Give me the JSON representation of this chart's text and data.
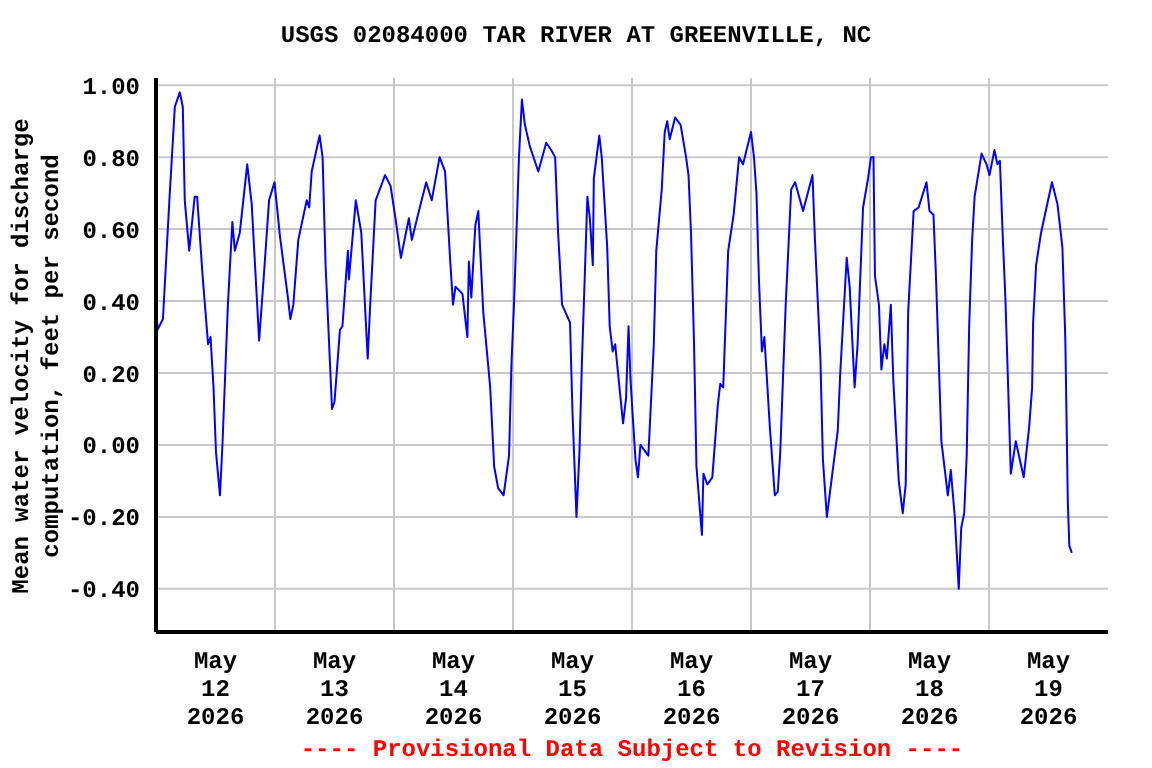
{
  "chart_data": {
    "type": "line",
    "title": "USGS 02084000 TAR RIVER AT GREENVILLE, NC",
    "ylabel": "Mean water velocity for discharge computation, feet per second",
    "annotations": [
      "---- Provisional Data Subject to Revision ----"
    ],
    "xlim": [
      "2026-05-12T00:00",
      "2026-05-20T00:00"
    ],
    "xticks": [
      {
        "value": "2026-05-12T12:00",
        "label": "May 12 2026"
      },
      {
        "value": "2026-05-13T00:00",
        "label": null
      },
      {
        "value": "2026-05-13T12:00",
        "label": "May 13 2026"
      },
      {
        "value": "2026-05-14T00:00",
        "label": null
      },
      {
        "value": "2026-05-14T12:00",
        "label": "May 14 2026"
      },
      {
        "value": "2026-05-15T00:00",
        "label": null
      },
      {
        "value": "2026-05-15T12:00",
        "label": "May 15 2026"
      },
      {
        "value": "2026-05-16T00:00",
        "label": null
      },
      {
        "value": "2026-05-16T12:00",
        "label": "May 16 2026"
      },
      {
        "value": "2026-05-17T00:00",
        "label": null
      },
      {
        "value": "2026-05-17T12:00",
        "label": "May 17 2026"
      },
      {
        "value": "2026-05-18T00:00",
        "label": null
      },
      {
        "value": "2026-05-18T12:00",
        "label": "May 18 2026"
      },
      {
        "value": "2026-05-19T00:00",
        "label": null
      },
      {
        "value": "2026-05-19T12:00",
        "label": "May 19 2026"
      }
    ],
    "ylim": [
      -0.52,
      1.02
    ],
    "yticks": [
      {
        "value": -0.4,
        "label": "-0.40"
      },
      {
        "value": -0.2,
        "label": "-0.20"
      },
      {
        "value": 0,
        "label": "0.00"
      },
      {
        "value": 0.2,
        "label": "0.20"
      },
      {
        "value": 0.4,
        "label": "0.40"
      },
      {
        "value": 0.6,
        "label": "0.60"
      },
      {
        "value": 0.8,
        "label": "0.80"
      },
      {
        "value": 1,
        "label": "1.00"
      }
    ],
    "grid": true,
    "series": [
      {
        "color": "#0000ff",
        "x": [
          "2026-05-12T00:00",
          "2026-05-12T00:18",
          "2026-05-12T01:24",
          "2026-05-12T02:42",
          "2026-05-12T03:48",
          "2026-05-12T04:48",
          "2026-05-12T05:24",
          "2026-05-12T05:48",
          "2026-05-12T06:42",
          "2026-05-12T07:48",
          "2026-05-12T08:18",
          "2026-05-12T09:24",
          "2026-05-12T10:30",
          "2026-05-12T11:00",
          "2026-05-12T11:36",
          "2026-05-12T12:06",
          "2026-05-12T12:54",
          "2026-05-12T13:24",
          "2026-05-12T14:30",
          "2026-05-12T15:24",
          "2026-05-12T15:54",
          "2026-05-12T16:54",
          "2026-05-12T18:24",
          "2026-05-12T19:18",
          "2026-05-12T20:48",
          "2026-05-12T21:48",
          "2026-05-12T22:48",
          "2026-05-12T23:54",
          "2026-05-13T01:00",
          "2026-05-13T02:36",
          "2026-05-13T03:06",
          "2026-05-13T03:42",
          "2026-05-13T04:42",
          "2026-05-13T06:24",
          "2026-05-13T06:54",
          "2026-05-13T07:24",
          "2026-05-13T09:00",
          "2026-05-13T09:36",
          "2026-05-13T10:12",
          "2026-05-13T11:30",
          "2026-05-13T12:00",
          "2026-05-13T13:06",
          "2026-05-13T13:36",
          "2026-05-13T14:42",
          "2026-05-13T14:54",
          "2026-05-13T16:18",
          "2026-05-13T17:24",
          "2026-05-13T18:42",
          "2026-05-13T19:12",
          "2026-05-13T20:18",
          "2026-05-13T22:12",
          "2026-05-13T23:18",
          "2026-05-14T00:18",
          "2026-05-14T01:24",
          "2026-05-14T03:00",
          "2026-05-14T03:36",
          "2026-05-14T05:12",
          "2026-05-14T06:30",
          "2026-05-14T07:36",
          "2026-05-14T09:12",
          "2026-05-14T10:18",
          "2026-05-14T11:18",
          "2026-05-14T11:54",
          "2026-05-14T12:24",
          "2026-05-14T13:48",
          "2026-05-14T14:48",
          "2026-05-14T15:06",
          "2026-05-14T15:36",
          "2026-05-14T16:24",
          "2026-05-14T17:00",
          "2026-05-14T18:00",
          "2026-05-14T19:24",
          "2026-05-14T20:12",
          "2026-05-14T21:00",
          "2026-05-14T22:06",
          "2026-05-14T23:12",
          "2026-05-14T23:42",
          "2026-05-15T00:12",
          "2026-05-15T00:48",
          "2026-05-15T01:12",
          "2026-05-15T01:48",
          "2026-05-15T02:24",
          "2026-05-15T03:24",
          "2026-05-15T05:06",
          "2026-05-15T06:42",
          "2026-05-15T07:42",
          "2026-05-15T08:30",
          "2026-05-15T09:06",
          "2026-05-15T09:54",
          "2026-05-15T11:30",
          "2026-05-15T12:00",
          "2026-05-15T12:48",
          "2026-05-15T13:24",
          "2026-05-15T13:54",
          "2026-05-15T14:30",
          "2026-05-15T15:00",
          "2026-05-15T15:30",
          "2026-05-15T16:06",
          "2026-05-15T16:18",
          "2026-05-15T17:24",
          "2026-05-15T17:54",
          "2026-05-15T19:00",
          "2026-05-15T19:30",
          "2026-05-15T20:06",
          "2026-05-15T20:36",
          "2026-05-15T22:12",
          "2026-05-15T22:48",
          "2026-05-15T23:18",
          "2026-05-15T23:42",
          "2026-05-16T00:42",
          "2026-05-16T01:12",
          "2026-05-16T01:42",
          "2026-05-16T03:18",
          "2026-05-16T04:24",
          "2026-05-16T04:54",
          "2026-05-16T06:00",
          "2026-05-16T06:36",
          "2026-05-16T07:06",
          "2026-05-16T07:36",
          "2026-05-16T08:42",
          "2026-05-16T09:48",
          "2026-05-16T10:54",
          "2026-05-16T11:24",
          "2026-05-16T11:54",
          "2026-05-16T12:30",
          "2026-05-16T13:00",
          "2026-05-16T14:06",
          "2026-05-16T14:24",
          "2026-05-16T15:12",
          "2026-05-16T16:12",
          "2026-05-16T17:18",
          "2026-05-16T17:48",
          "2026-05-16T18:24",
          "2026-05-16T19:24",
          "2026-05-16T20:30",
          "2026-05-16T21:36",
          "2026-05-16T22:24",
          "2026-05-17T00:00",
          "2026-05-17T00:36",
          "2026-05-17T01:06",
          "2026-05-17T01:36",
          "2026-05-17T02:12",
          "2026-05-17T02:42",
          "2026-05-17T03:48",
          "2026-05-17T04:48",
          "2026-05-17T05:24",
          "2026-05-17T05:54",
          "2026-05-17T07:00",
          "2026-05-17T08:06",
          "2026-05-17T08:54",
          "2026-05-17T10:30",
          "2026-05-17T12:24",
          "2026-05-17T12:54",
          "2026-05-17T14:00",
          "2026-05-17T14:30",
          "2026-05-17T15:18",
          "2026-05-17T16:24",
          "2026-05-17T17:30",
          "2026-05-17T18:00",
          "2026-05-17T19:18",
          "2026-05-17T19:54",
          "2026-05-17T20:54",
          "2026-05-17T21:30",
          "2026-05-17T22:36",
          "2026-05-17T23:36",
          "2026-05-18T00:12",
          "2026-05-18T00:42",
          "2026-05-18T01:00",
          "2026-05-18T01:48",
          "2026-05-18T02:18",
          "2026-05-18T02:54",
          "2026-05-18T03:24",
          "2026-05-18T04:12",
          "2026-05-18T04:42",
          "2026-05-18T05:48",
          "2026-05-18T06:36",
          "2026-05-18T07:12",
          "2026-05-18T07:42",
          "2026-05-18T08:48",
          "2026-05-18T09:48",
          "2026-05-18T11:24",
          "2026-05-18T12:00",
          "2026-05-18T12:48",
          "2026-05-18T13:18",
          "2026-05-18T14:24",
          "2026-05-18T15:42",
          "2026-05-18T16:18",
          "2026-05-18T17:06",
          "2026-05-18T17:54",
          "2026-05-18T18:24",
          "2026-05-18T19:00",
          "2026-05-18T19:30",
          "2026-05-18T20:00",
          "2026-05-18T20:36",
          "2026-05-18T21:06",
          "2026-05-18T22:30",
          "2026-05-18T23:30",
          "2026-05-19T00:06",
          "2026-05-19T01:06",
          "2026-05-19T01:42",
          "2026-05-19T02:12",
          "2026-05-19T02:48",
          "2026-05-19T03:18",
          "2026-05-19T03:48",
          "2026-05-19T04:24",
          "2026-05-19T05:24",
          "2026-05-19T07:00",
          "2026-05-19T08:06",
          "2026-05-19T08:42",
          "2026-05-19T08:54",
          "2026-05-19T09:30",
          "2026-05-19T10:30",
          "2026-05-19T11:36",
          "2026-05-19T12:42",
          "2026-05-19T13:48",
          "2026-05-19T14:48",
          "2026-05-19T15:24",
          "2026-05-19T15:54",
          "2026-05-19T16:12",
          "2026-05-19T16:42"
        ],
        "values": [
          0.4,
          0.32,
          0.35,
          0.68,
          0.94,
          0.98,
          0.94,
          0.68,
          0.54,
          0.69,
          0.69,
          0.47,
          0.28,
          0.3,
          0.16,
          -0.02,
          -0.14,
          0.0,
          0.39,
          0.62,
          0.54,
          0.59,
          0.78,
          0.67,
          0.29,
          0.48,
          0.68,
          0.73,
          0.58,
          0.41,
          0.35,
          0.39,
          0.57,
          0.68,
          0.66,
          0.76,
          0.86,
          0.8,
          0.5,
          0.1,
          0.12,
          0.32,
          0.33,
          0.54,
          0.46,
          0.68,
          0.59,
          0.24,
          0.39,
          0.68,
          0.75,
          0.72,
          0.63,
          0.52,
          0.63,
          0.57,
          0.66,
          0.73,
          0.68,
          0.8,
          0.76,
          0.52,
          0.39,
          0.44,
          0.42,
          0.3,
          0.51,
          0.41,
          0.61,
          0.65,
          0.37,
          0.16,
          -0.06,
          -0.12,
          -0.14,
          -0.03,
          0.23,
          0.39,
          0.63,
          0.8,
          0.96,
          0.89,
          0.83,
          0.76,
          0.84,
          0.82,
          0.8,
          0.59,
          0.39,
          0.34,
          0.09,
          -0.2,
          -0.02,
          0.23,
          0.48,
          0.69,
          0.63,
          0.5,
          0.74,
          0.86,
          0.8,
          0.55,
          0.33,
          0.26,
          0.28,
          0.06,
          0.13,
          0.33,
          0.18,
          -0.04,
          -0.09,
          0.0,
          -0.03,
          0.28,
          0.54,
          0.71,
          0.87,
          0.9,
          0.85,
          0.91,
          0.89,
          0.8,
          0.75,
          0.59,
          0.29,
          -0.06,
          -0.25,
          -0.08,
          -0.11,
          -0.09,
          0.11,
          0.17,
          0.16,
          0.54,
          0.64,
          0.8,
          0.78,
          0.87,
          0.8,
          0.7,
          0.46,
          0.26,
          0.3,
          0.05,
          -0.14,
          -0.13,
          -0.02,
          0.39,
          0.71,
          0.73,
          0.65,
          0.75,
          0.57,
          0.24,
          -0.04,
          -0.2,
          -0.08,
          0.04,
          0.2,
          0.52,
          0.44,
          0.16,
          0.28,
          0.66,
          0.74,
          0.8,
          0.8,
          0.47,
          0.39,
          0.21,
          0.28,
          0.24,
          0.39,
          0.18,
          -0.1,
          -0.19,
          -0.11,
          0.37,
          0.65,
          0.66,
          0.73,
          0.65,
          0.64,
          0.47,
          0.01,
          -0.14,
          -0.07,
          -0.2,
          -0.4,
          -0.23,
          -0.19,
          -0.03,
          0.33,
          0.57,
          0.69,
          0.81,
          0.78,
          0.75,
          0.82,
          0.78,
          0.79,
          0.57,
          0.41,
          0.19,
          -0.08,
          0.01,
          -0.09,
          0.05,
          0.16,
          0.34,
          0.5,
          0.59,
          0.66,
          0.73,
          0.67,
          0.55,
          0.29,
          -0.16,
          -0.28,
          -0.3
        ]
      }
    ]
  }
}
